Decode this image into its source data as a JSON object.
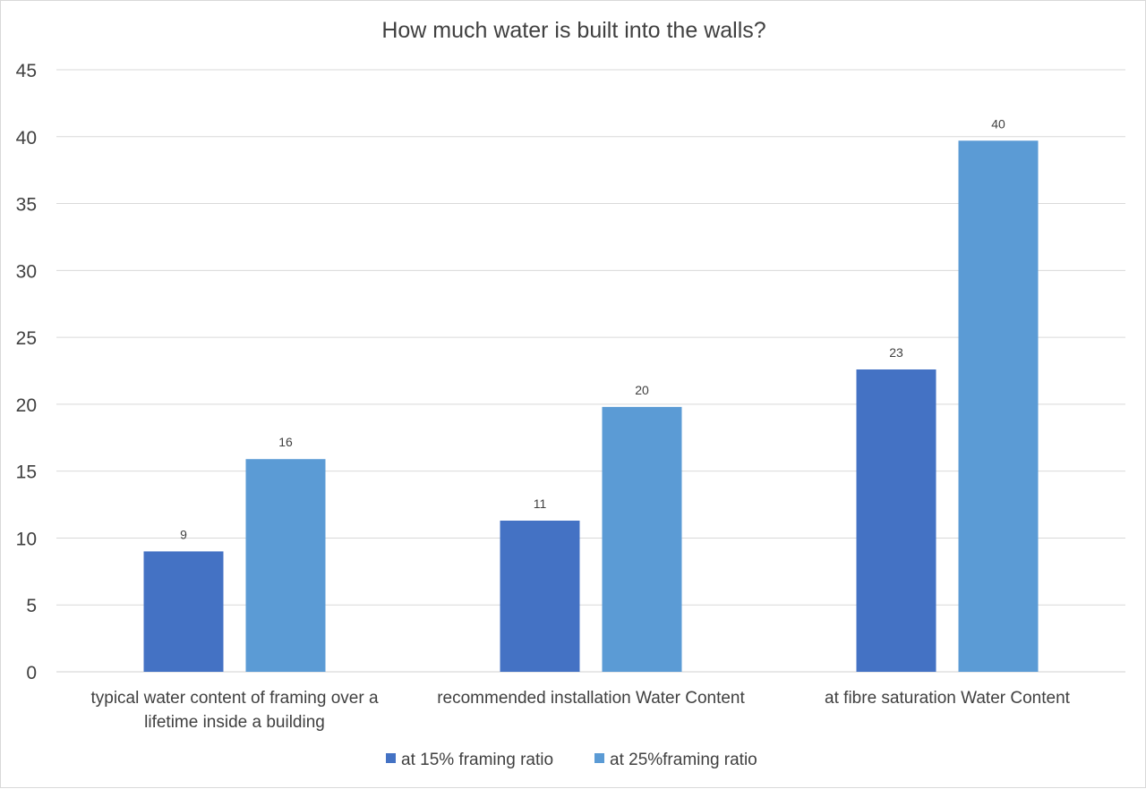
{
  "chart_data": {
    "type": "bar",
    "title": "How much water is built into the walls?",
    "categories": [
      [
        "typical water content of framing over a",
        "lifetime inside a building"
      ],
      [
        "recommended installation Water Content"
      ],
      [
        "at fibre saturation Water Content"
      ]
    ],
    "series": [
      {
        "name": "at 15% framing ratio",
        "color": "#4472c4",
        "values": [
          9,
          11.3,
          22.6
        ],
        "labels": [
          "9",
          "11",
          "23"
        ]
      },
      {
        "name": "at 25%framing ratio",
        "color": "#5b9bd5",
        "values": [
          15.9,
          19.8,
          39.7
        ],
        "labels": [
          "16",
          "20",
          "40"
        ]
      }
    ],
    "ylim": [
      0,
      45
    ],
    "yticks": [
      0,
      5,
      10,
      15,
      20,
      25,
      30,
      35,
      40,
      45
    ],
    "xlabel": "",
    "ylabel": "",
    "grid": true,
    "legend": "bottom-center"
  }
}
